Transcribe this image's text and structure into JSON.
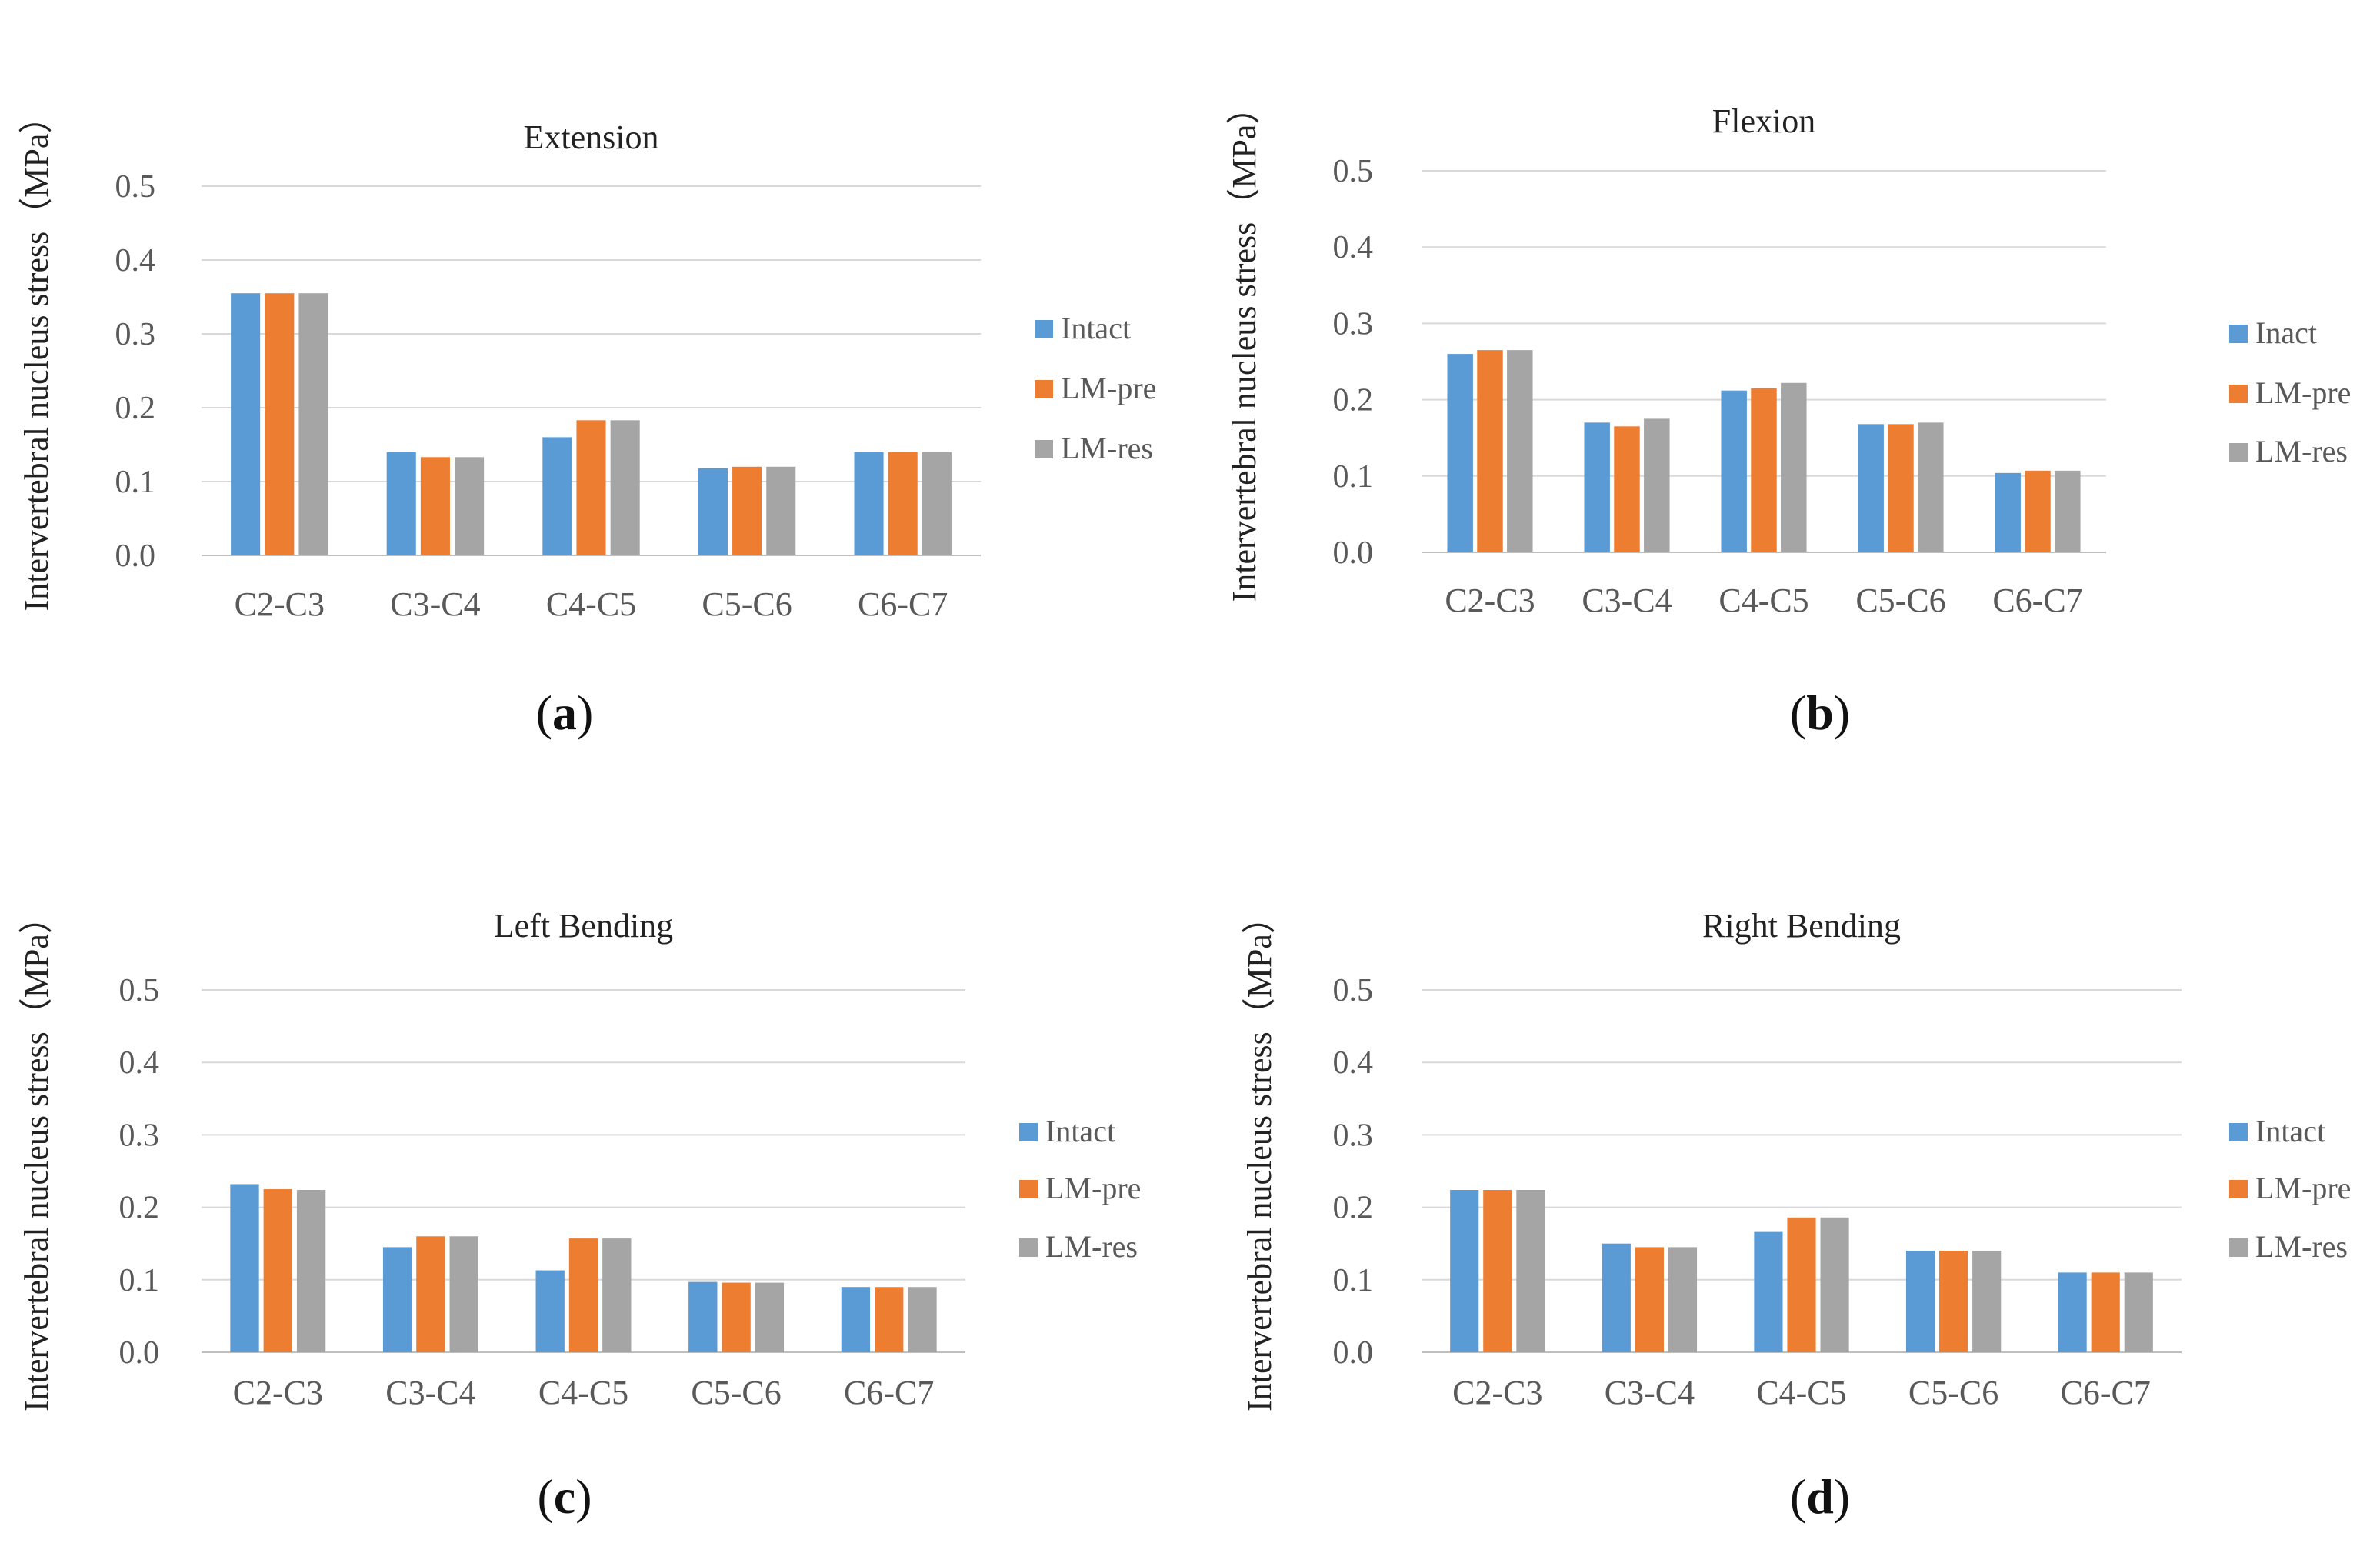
{
  "chart_data": [
    {
      "id": "a",
      "type": "bar",
      "title": "Extension",
      "panel_label": "a",
      "ylabel": "Intervertebral nucleus  stress（MPa）",
      "xlabel": "",
      "ylim": [
        0,
        0.5
      ],
      "yticks": [
        "0.0",
        "0.1",
        "0.2",
        "0.3",
        "0.4",
        "0.5"
      ],
      "grid": true,
      "legend_position": "right",
      "categories": [
        "C2-C3",
        "C3-C4",
        "C4-C5",
        "C5-C6",
        "C6-C7"
      ],
      "series": [
        {
          "name": "Intact",
          "values": [
            0.355,
            0.14,
            0.16,
            0.118,
            0.14
          ]
        },
        {
          "name": "LM-pre",
          "values": [
            0.355,
            0.133,
            0.183,
            0.12,
            0.14
          ]
        },
        {
          "name": "LM-res",
          "values": [
            0.355,
            0.133,
            0.183,
            0.12,
            0.14
          ]
        }
      ]
    },
    {
      "id": "b",
      "type": "bar",
      "title": "Flexion",
      "panel_label": "b",
      "ylabel": "Intervertebral nucleus  stress（MPa）",
      "xlabel": "",
      "ylim": [
        0,
        0.5
      ],
      "yticks": [
        "0.0",
        "0.1",
        "0.2",
        "0.3",
        "0.4",
        "0.5"
      ],
      "grid": true,
      "legend_position": "right",
      "categories": [
        "C2-C3",
        "C3-C4",
        "C4-C5",
        "C5-C6",
        "C6-C7"
      ],
      "series": [
        {
          "name": "Inact",
          "values": [
            0.26,
            0.17,
            0.212,
            0.168,
            0.104
          ]
        },
        {
          "name": "LM-pre",
          "values": [
            0.265,
            0.165,
            0.215,
            0.168,
            0.107
          ]
        },
        {
          "name": "LM-res",
          "values": [
            0.265,
            0.175,
            0.222,
            0.17,
            0.107
          ]
        }
      ]
    },
    {
      "id": "c",
      "type": "bar",
      "title": "Left Bending",
      "panel_label": "c",
      "ylabel": "Intervertebral nucleus  stress（MPa）",
      "xlabel": "",
      "ylim": [
        0,
        0.5
      ],
      "yticks": [
        "0.0",
        "0.1",
        "0.2",
        "0.3",
        "0.4",
        "0.5"
      ],
      "grid": true,
      "legend_position": "right",
      "categories": [
        "C2-C3",
        "C3-C4",
        "C4-C5",
        "C5-C6",
        "C6-C7"
      ],
      "series": [
        {
          "name": "Intact",
          "values": [
            0.232,
            0.145,
            0.113,
            0.097,
            0.09
          ]
        },
        {
          "name": "LM-pre",
          "values": [
            0.225,
            0.16,
            0.157,
            0.096,
            0.09
          ]
        },
        {
          "name": "LM-res",
          "values": [
            0.224,
            0.16,
            0.157,
            0.096,
            0.09
          ]
        }
      ]
    },
    {
      "id": "d",
      "type": "bar",
      "title": "Right Bending",
      "panel_label": "d",
      "ylabel": "Intervertebral nucleus  stress（MPa）",
      "xlabel": "",
      "ylim": [
        0,
        0.5
      ],
      "yticks": [
        "0.0",
        "0.1",
        "0.2",
        "0.3",
        "0.4",
        "0.5"
      ],
      "grid": true,
      "legend_position": "right",
      "categories": [
        "C2-C3",
        "C3-C4",
        "C4-C5",
        "C5-C6",
        "C6-C7"
      ],
      "series": [
        {
          "name": "Intact",
          "values": [
            0.224,
            0.15,
            0.166,
            0.14,
            0.11
          ]
        },
        {
          "name": "LM-pre",
          "values": [
            0.224,
            0.145,
            0.186,
            0.14,
            0.11
          ]
        },
        {
          "name": "LM-res",
          "values": [
            0.224,
            0.145,
            0.186,
            0.14,
            0.11
          ]
        }
      ]
    }
  ],
  "colors": {
    "series": [
      "#5b9bd5",
      "#ed7d31",
      "#a5a5a5"
    ]
  }
}
